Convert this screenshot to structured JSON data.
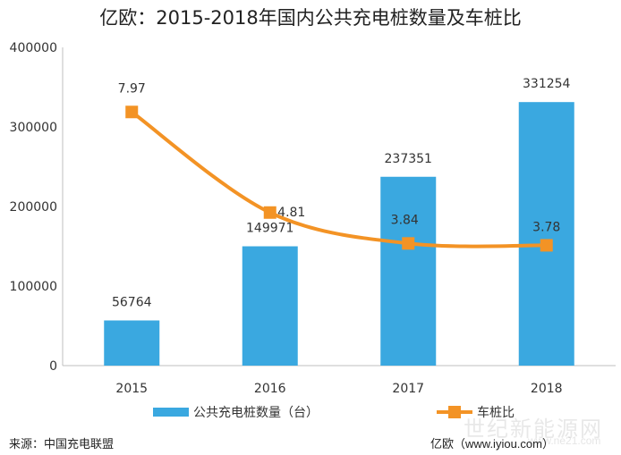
{
  "title": "亿欧：2015-2018年国内公共充电桩数量及车桩比",
  "source": "来源：中国充电联盟",
  "publisher": "亿欧（www.iyiou.com）",
  "watermark": "世纪新能源网",
  "watermark_sub": "www.ne21.com",
  "colors": {
    "bar": "#3aa8e0",
    "line": "#f39325",
    "axis": "#bfbfbf"
  },
  "chart_data": {
    "type": "bar",
    "categories": [
      "2015",
      "2016",
      "2017",
      "2018"
    ],
    "series": [
      {
        "name": "公共充电桩数量（台）",
        "type": "bar",
        "values": [
          56764,
          149971,
          237351,
          331254
        ]
      },
      {
        "name": "车桩比",
        "type": "line",
        "values": [
          7.97,
          4.81,
          3.84,
          3.78
        ]
      }
    ],
    "yticks": [
      "0",
      "100000",
      "200000",
      "300000",
      "400000"
    ],
    "ylim": [
      0,
      400000
    ],
    "secondary_ylim": [
      0,
      10
    ],
    "grid": false,
    "legend": "bottom"
  }
}
